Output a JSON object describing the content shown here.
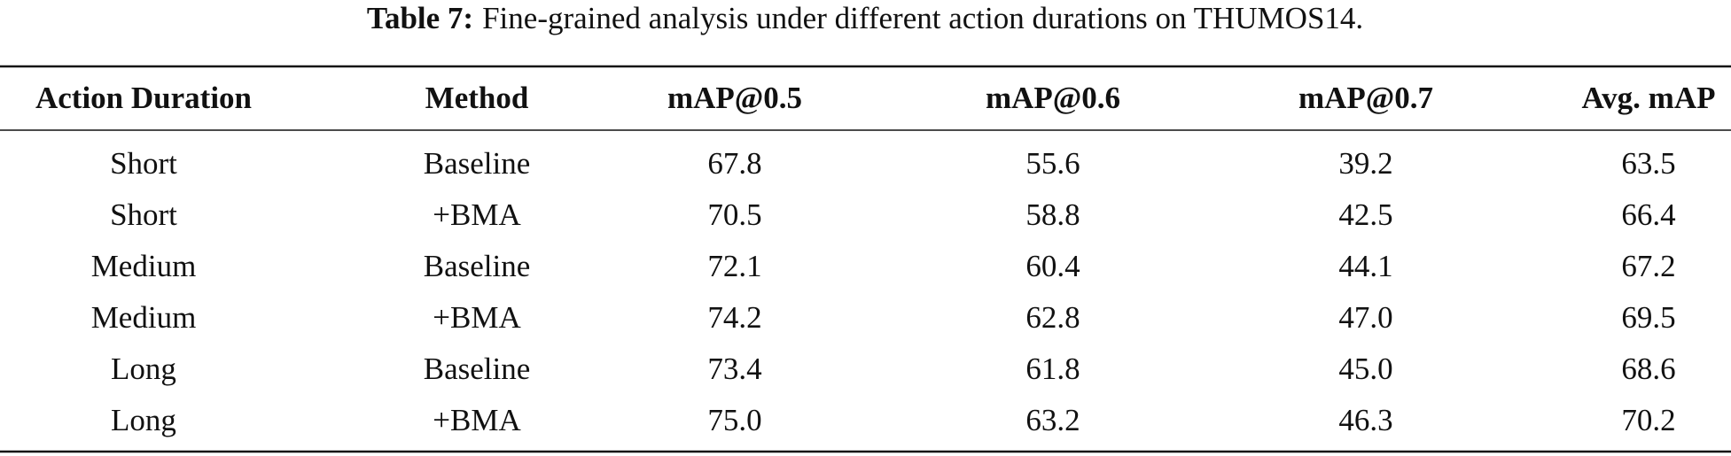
{
  "caption": {
    "label": "Table 7:",
    "text": "Fine-grained analysis under different action durations on THUMOS14."
  },
  "table": {
    "header": [
      "Action Duration",
      "Method",
      "mAP@0.5",
      "mAP@0.6",
      "mAP@0.7",
      "Avg. mAP"
    ],
    "rows": [
      [
        "Short",
        "Baseline",
        "67.8",
        "55.6",
        "39.2",
        "63.5"
      ],
      [
        "Short",
        "+BMA",
        "70.5",
        "58.8",
        "42.5",
        "66.4"
      ],
      [
        "Medium",
        "Baseline",
        "72.1",
        "60.4",
        "44.1",
        "67.2"
      ],
      [
        "Medium",
        "+BMA",
        "74.2",
        "62.8",
        "47.0",
        "69.5"
      ],
      [
        "Long",
        "Baseline",
        "73.4",
        "61.8",
        "45.0",
        "68.6"
      ],
      [
        "Long",
        "+BMA",
        "75.0",
        "63.2",
        "46.3",
        "70.2"
      ]
    ]
  }
}
